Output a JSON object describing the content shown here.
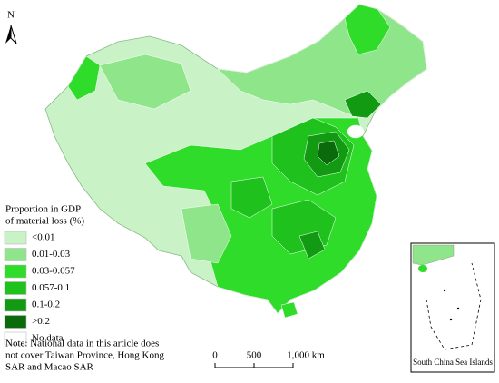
{
  "north": "N",
  "legend": {
    "title_lines": [
      "Proportion in GDP",
      "of material loss (%)"
    ],
    "items": [
      {
        "label": "<0.01",
        "color": "#c9f2c6"
      },
      {
        "label": "0.01-0.03",
        "color": "#8fe58a"
      },
      {
        "label": "0.03-0.057",
        "color": "#2fdc2a"
      },
      {
        "label": "0.057-0.1",
        "color": "#1fc21d"
      },
      {
        "label": "0.1-0.2",
        "color": "#119a12"
      },
      {
        "label": ">0.2",
        "color": "#0b6a0b"
      },
      {
        "label": "No data",
        "color": "#ffffff"
      }
    ]
  },
  "note_lines": [
    "Note: National data in this article does",
    "not cover Taiwan Province, Hong Kong",
    "SAR and Macao SAR"
  ],
  "scale_bar": {
    "labels": [
      "0",
      "500",
      "1,000 km"
    ]
  },
  "inset": {
    "label": "South China Sea Islands"
  }
}
